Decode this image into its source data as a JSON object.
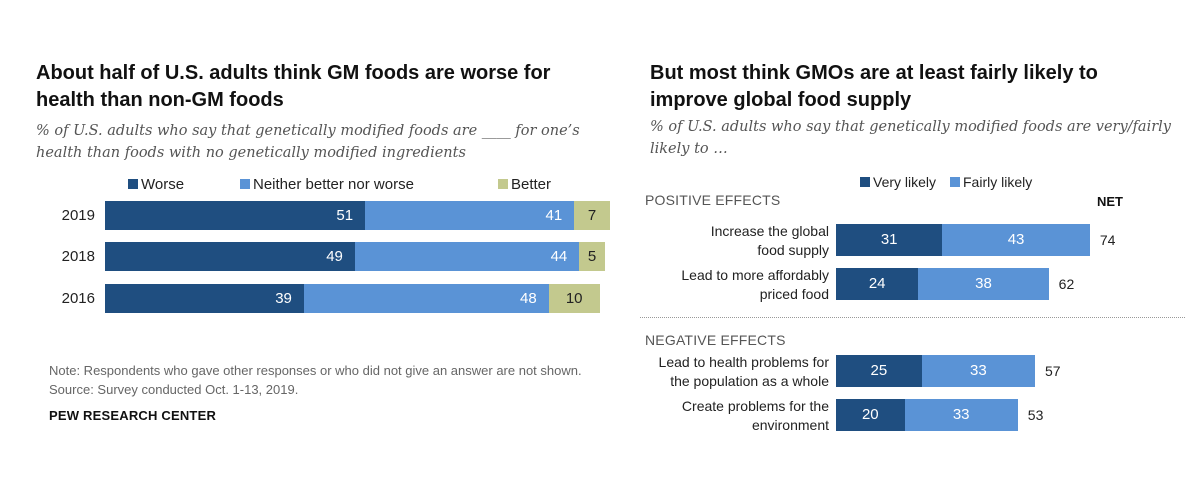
{
  "colors": {
    "dark_blue": "#1f4e80",
    "mid_blue": "#5a93d6",
    "olive": "#c3c98e"
  },
  "left": {
    "title": "About half of U.S. adults think GM foods are worse for health than non-GM foods",
    "title_line1": "About half of U.S. adults think GM foods are worse for",
    "title_line2": "health than non-GM foods",
    "subtitle_line1": "% of U.S. adults who say that genetically modified foods are ____ for one’s",
    "subtitle_line2": "health than foods with no genetically modified ingredients",
    "note_line1": "Note: Respondents who gave other responses or who did not give an answer are not shown.",
    "note_line2": "Source: Survey conducted Oct. 1-13, 2019.",
    "brand": "PEW RESEARCH CENTER"
  },
  "right": {
    "title_line1": "But most think GMOs are at least fairly likely to",
    "title_line2": "improve global food supply",
    "subtitle_line1": "% of U.S. adults who say that genetically modified foods are very/fairly",
    "subtitle_line2": "likely to …",
    "positive_header": "POSITIVE EFFECTS",
    "negative_header": "NEGATIVE EFFECTS",
    "net_header": "NET"
  },
  "chart_data": [
    {
      "type": "bar",
      "orientation": "horizontal",
      "stacked": true,
      "categories": [
        "2019",
        "2018",
        "2016"
      ],
      "series": [
        {
          "name": "Worse",
          "values": [
            51,
            49,
            39
          ],
          "color": "#1f4e80"
        },
        {
          "name": "Neither better nor worse",
          "values": [
            41,
            44,
            48
          ],
          "color": "#5a93d6"
        },
        {
          "name": "Better",
          "values": [
            7,
            5,
            10
          ],
          "color": "#c3c98e"
        }
      ],
      "legend_position": "top",
      "grid": false
    },
    {
      "type": "bar",
      "orientation": "horizontal",
      "stacked": true,
      "groups": [
        {
          "header": "POSITIVE EFFECTS",
          "categories": [
            {
              "line1": "Increase the global",
              "line2": "food supply"
            },
            {
              "line1": "Lead to more affordably",
              "line2": "priced food"
            }
          ]
        },
        {
          "header": "NEGATIVE EFFECTS",
          "categories": [
            {
              "line1": "Lead to health problems for",
              "line2": "the population as a whole"
            },
            {
              "line1": "Create problems for the",
              "line2": "environment"
            }
          ]
        }
      ],
      "series": [
        {
          "name": "Very likely",
          "values": [
            31,
            24,
            25,
            20
          ],
          "color": "#1f4e80"
        },
        {
          "name": "Fairly likely",
          "values": [
            43,
            38,
            33,
            33
          ],
          "color": "#5a93d6"
        }
      ],
      "net": [
        74,
        62,
        57,
        53
      ],
      "net_label": "NET",
      "legend_position": "top",
      "grid": false
    }
  ]
}
